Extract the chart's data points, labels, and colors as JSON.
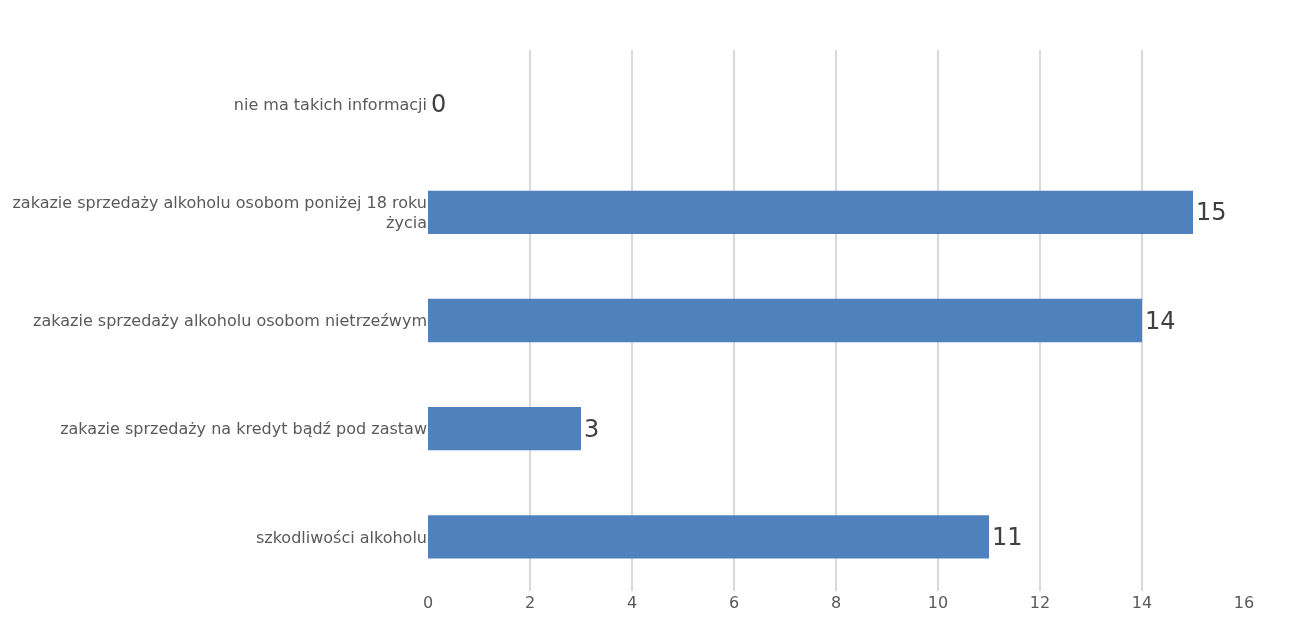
{
  "chart_data": {
    "type": "bar",
    "orientation": "horizontal",
    "categories": [
      "nie ma takich informacji",
      "zakazie sprzedaży alkoholu osobom poniżej 18 roku życia",
      "zakazie sprzedaży alkoholu osobom nietrzeźwym",
      "zakazie sprzedaży na kredyt bądź pod zastaw",
      "szkodliwości alkoholu"
    ],
    "values": [
      0,
      15,
      14,
      3,
      11
    ],
    "color": "#4f81bd",
    "xlim": [
      0,
      16
    ],
    "xticks": [
      0,
      2,
      4,
      6,
      8,
      10,
      12,
      14,
      16
    ],
    "grid": "x",
    "data_labels": true
  }
}
